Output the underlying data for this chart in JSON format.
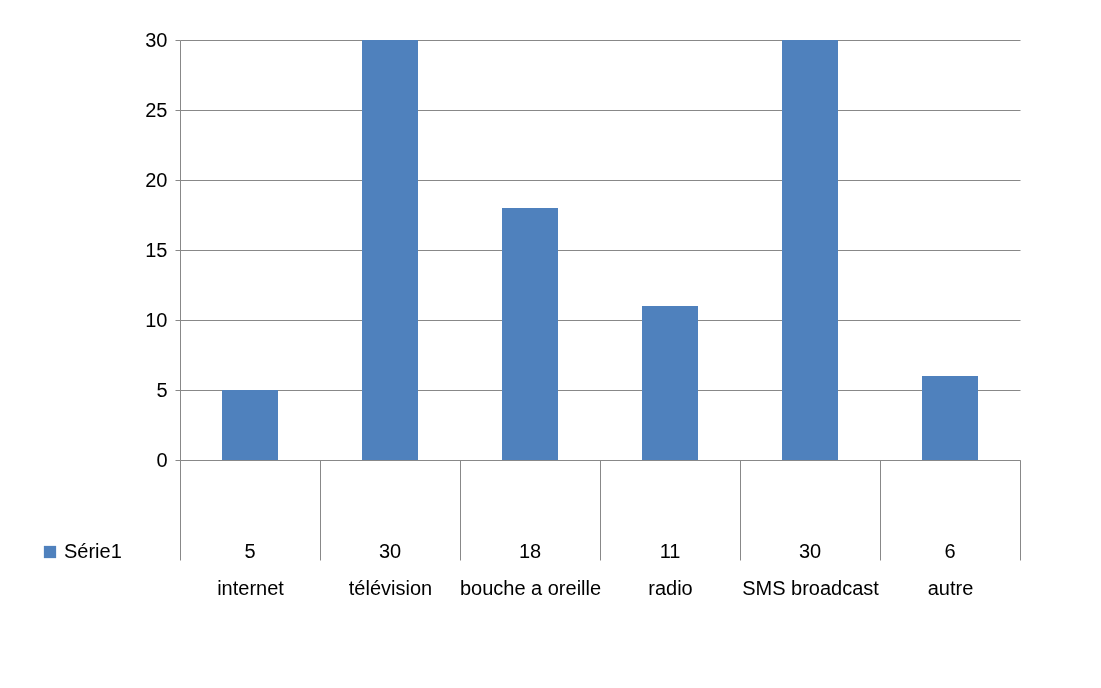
{
  "chart_data": {
    "type": "bar",
    "categories": [
      "internet",
      "télévision",
      "bouche a oreille",
      "radio",
      "SMS broadcast",
      "autre"
    ],
    "series": [
      {
        "name": "Série1",
        "color": "#4f81bd",
        "values": [
          5,
          30,
          18,
          11,
          30,
          6
        ]
      }
    ],
    "ylim": [
      0,
      30
    ],
    "yticks": [
      0,
      5,
      10,
      15,
      20,
      25,
      30
    ],
    "grid": "y",
    "data_labels": true,
    "legend": "bottom left"
  }
}
